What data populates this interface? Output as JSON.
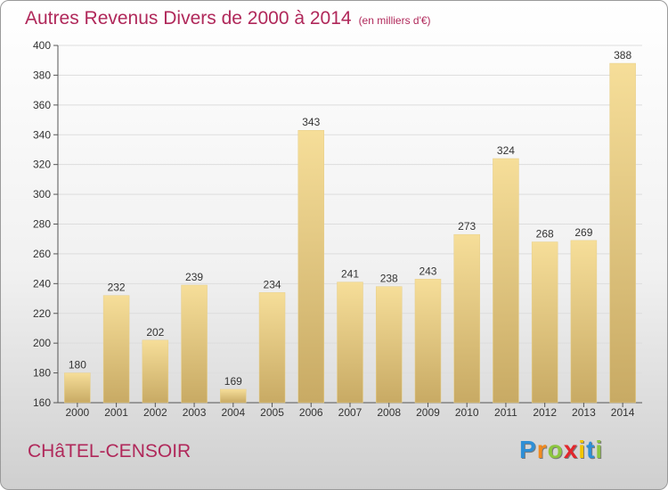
{
  "title": "Autres Revenus Divers de 2000 à 2014",
  "unit_note": "(en milliers d'€)",
  "place": "CHâTEL-CENSOIR",
  "logo": {
    "letters": [
      "P",
      "r",
      "o",
      "x",
      "i",
      "t",
      "i"
    ],
    "colors": [
      "#2e8fd6",
      "#f28a1e",
      "#8cc63f",
      "#e2262c",
      "#f2c500",
      "#2e8fd6",
      "#8cc63f"
    ]
  },
  "colors": {
    "accent": "#b0285a",
    "bar_light": "#f6de99",
    "bar_dark": "#c8aa64"
  },
  "chart_data": {
    "type": "bar",
    "title": "Autres Revenus Divers de 2000 à 2014",
    "subtitle": "(en milliers d'€)",
    "xlabel": "",
    "ylabel": "",
    "categories": [
      "2000",
      "2001",
      "2002",
      "2003",
      "2004",
      "2005",
      "2006",
      "2007",
      "2008",
      "2009",
      "2010",
      "2011",
      "2012",
      "2013",
      "2014"
    ],
    "values": [
      180,
      232,
      202,
      239,
      169,
      234,
      343,
      241,
      238,
      243,
      273,
      324,
      268,
      269,
      388
    ],
    "ylim": [
      160,
      400
    ],
    "yticks": [
      160,
      180,
      200,
      220,
      240,
      260,
      280,
      300,
      320,
      340,
      360,
      380,
      400
    ],
    "grid": true
  }
}
